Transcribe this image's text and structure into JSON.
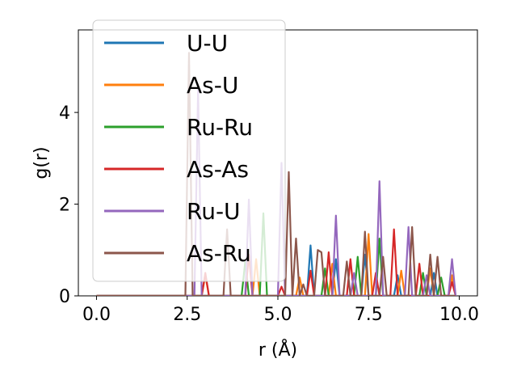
{
  "chart_data": {
    "type": "line",
    "xlabel": "r (Å)",
    "ylabel": "g(r)",
    "xlim": [
      -0.5,
      10.5
    ],
    "ylim": [
      0,
      5.8
    ],
    "xticks": [
      0.0,
      2.5,
      5.0,
      7.5,
      10.0
    ],
    "xtick_labels": [
      "0.0",
      "2.5",
      "5.0",
      "7.5",
      "10.0"
    ],
    "yticks": [
      0,
      2,
      4
    ],
    "ytick_labels": [
      "0",
      "2",
      "4"
    ],
    "grid": false,
    "legend_position": "top-left",
    "series": [
      {
        "name": "U-U",
        "color": "#1f77b4",
        "points": [
          [
            0,
            0
          ],
          [
            5.8,
            0
          ],
          [
            5.9,
            1.1
          ],
          [
            6.0,
            0
          ],
          [
            6.5,
            0
          ],
          [
            6.6,
            0.8
          ],
          [
            6.7,
            0
          ],
          [
            7.3,
            0
          ],
          [
            7.4,
            0.9
          ],
          [
            7.5,
            0
          ],
          [
            8.2,
            0
          ],
          [
            8.3,
            0.45
          ],
          [
            8.4,
            0
          ],
          [
            9.2,
            0
          ],
          [
            9.3,
            0.5
          ],
          [
            9.4,
            0
          ],
          [
            9.9,
            0
          ]
        ]
      },
      {
        "name": "As-U",
        "color": "#ff7f0e",
        "points": [
          [
            0,
            0
          ],
          [
            2.9,
            0
          ],
          [
            3.0,
            0.45
          ],
          [
            3.1,
            0
          ],
          [
            4.3,
            0
          ],
          [
            4.4,
            0.8
          ],
          [
            4.5,
            0
          ],
          [
            5.5,
            0
          ],
          [
            5.6,
            0.4
          ],
          [
            5.7,
            0
          ],
          [
            6.4,
            0
          ],
          [
            6.5,
            0.7
          ],
          [
            6.6,
            0
          ],
          [
            7.4,
            0
          ],
          [
            7.5,
            1.35
          ],
          [
            7.6,
            0
          ],
          [
            8.3,
            0
          ],
          [
            8.4,
            0.55
          ],
          [
            8.5,
            0
          ],
          [
            9.1,
            0
          ],
          [
            9.2,
            0.6
          ],
          [
            9.3,
            0
          ],
          [
            9.7,
            0
          ],
          [
            9.8,
            0.45
          ],
          [
            9.9,
            0
          ]
        ]
      },
      {
        "name": "Ru-Ru",
        "color": "#2ca02c",
        "points": [
          [
            0,
            0
          ],
          [
            4.0,
            0
          ],
          [
            4.1,
            0.75
          ],
          [
            4.2,
            0
          ],
          [
            4.5,
            0
          ],
          [
            4.6,
            1.8
          ],
          [
            4.7,
            0
          ],
          [
            6.2,
            0
          ],
          [
            6.3,
            0.6
          ],
          [
            6.4,
            0
          ],
          [
            7.1,
            0
          ],
          [
            7.2,
            0.85
          ],
          [
            7.3,
            0
          ],
          [
            7.7,
            0
          ],
          [
            7.8,
            1.25
          ],
          [
            7.9,
            0
          ],
          [
            8.9,
            0
          ],
          [
            9.0,
            0.5
          ],
          [
            9.1,
            0
          ],
          [
            9.4,
            0
          ],
          [
            9.5,
            0.4
          ],
          [
            9.6,
            0
          ],
          [
            9.9,
            0
          ]
        ]
      },
      {
        "name": "As-As",
        "color": "#d62728",
        "points": [
          [
            0,
            0
          ],
          [
            2.9,
            0
          ],
          [
            3.0,
            0.5
          ],
          [
            3.1,
            0
          ],
          [
            4.1,
            0
          ],
          [
            4.2,
            0.9
          ],
          [
            4.3,
            0
          ],
          [
            5.0,
            0
          ],
          [
            5.1,
            0.2
          ],
          [
            5.2,
            0
          ],
          [
            5.8,
            0
          ],
          [
            5.9,
            0.55
          ],
          [
            6.0,
            0
          ],
          [
            6.3,
            0
          ],
          [
            6.4,
            0.95
          ],
          [
            6.5,
            0
          ],
          [
            6.9,
            0
          ],
          [
            7.0,
            0.8
          ],
          [
            7.1,
            0
          ],
          [
            7.6,
            0
          ],
          [
            7.7,
            0.5
          ],
          [
            7.8,
            0
          ],
          [
            8.1,
            0
          ],
          [
            8.2,
            1.45
          ],
          [
            8.3,
            0
          ],
          [
            8.8,
            0
          ],
          [
            8.9,
            0.7
          ],
          [
            9.0,
            0
          ],
          [
            9.7,
            0
          ],
          [
            9.8,
            0.3
          ],
          [
            9.9,
            0
          ]
        ]
      },
      {
        "name": "Ru-U",
        "color": "#9467bd",
        "points": [
          [
            0,
            0
          ],
          [
            2.7,
            0
          ],
          [
            2.8,
            4.5
          ],
          [
            2.9,
            0
          ],
          [
            4.1,
            0
          ],
          [
            4.2,
            2.1
          ],
          [
            4.3,
            0
          ],
          [
            5.0,
            0
          ],
          [
            5.1,
            2.9
          ],
          [
            5.2,
            0
          ],
          [
            6.5,
            0
          ],
          [
            6.6,
            1.75
          ],
          [
            6.7,
            0
          ],
          [
            7.0,
            0
          ],
          [
            7.1,
            0.5
          ],
          [
            7.2,
            0
          ],
          [
            7.7,
            0
          ],
          [
            7.8,
            2.5
          ],
          [
            7.9,
            0
          ],
          [
            8.5,
            0
          ],
          [
            8.6,
            1.5
          ],
          [
            8.7,
            0
          ],
          [
            9.0,
            0
          ],
          [
            9.1,
            0.45
          ],
          [
            9.2,
            0
          ],
          [
            9.7,
            0
          ],
          [
            9.8,
            0.8
          ],
          [
            9.9,
            0
          ]
        ]
      },
      {
        "name": "As-Ru",
        "color": "#8c564b",
        "points": [
          [
            0,
            0
          ],
          [
            2.45,
            0
          ],
          [
            2.55,
            5.3
          ],
          [
            2.65,
            0
          ],
          [
            3.5,
            0
          ],
          [
            3.6,
            1.45
          ],
          [
            3.7,
            0
          ],
          [
            5.2,
            0
          ],
          [
            5.3,
            2.7
          ],
          [
            5.4,
            0
          ],
          [
            5.5,
            1.25
          ],
          [
            5.6,
            0
          ],
          [
            5.7,
            0.25
          ],
          [
            5.8,
            0
          ],
          [
            6.0,
            0
          ],
          [
            6.1,
            1.0
          ],
          [
            6.2,
            0.95
          ],
          [
            6.3,
            0
          ],
          [
            6.8,
            0
          ],
          [
            6.9,
            0.75
          ],
          [
            7.0,
            0
          ],
          [
            7.3,
            0
          ],
          [
            7.4,
            1.4
          ],
          [
            7.5,
            0
          ],
          [
            7.8,
            0
          ],
          [
            7.9,
            0.85
          ],
          [
            8.0,
            0
          ],
          [
            8.6,
            0
          ],
          [
            8.7,
            1.5
          ],
          [
            8.8,
            0
          ],
          [
            9.1,
            0
          ],
          [
            9.2,
            0.9
          ],
          [
            9.3,
            0
          ],
          [
            9.4,
            0.85
          ],
          [
            9.5,
            0
          ],
          [
            9.9,
            0
          ]
        ]
      }
    ]
  }
}
